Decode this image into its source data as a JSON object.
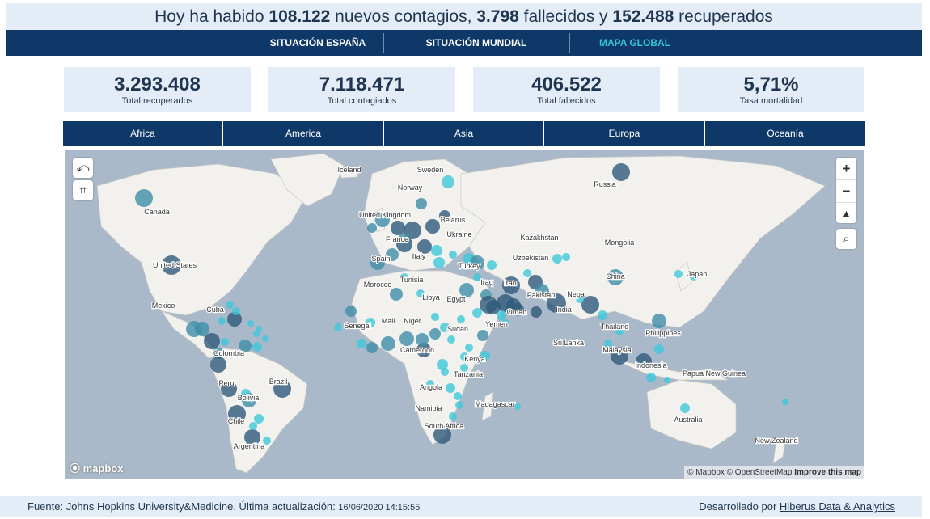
{
  "headline": {
    "p1": "Hoy ha habido ",
    "new_cases": "108.122",
    "p2": " nuevos contagios, ",
    "deaths": "3.798",
    "p3": " fallecidos y ",
    "recovered": "152.488",
    "p4": " recuperados"
  },
  "nav": {
    "tabs": [
      "SITUACIÓN ESPAÑA",
      "SITUACIÓN MUNDIAL",
      "MAPA GLOBAL"
    ],
    "active": "MAPA GLOBAL"
  },
  "kpis": [
    {
      "value": "3.293.408",
      "label": "Total recuperados"
    },
    {
      "value": "7.118.471",
      "label": "Total contagiados"
    },
    {
      "value": "406.522",
      "label": "Total fallecidos"
    },
    {
      "value": "5,71%",
      "label": "Tasa mortalidad"
    }
  ],
  "regions": [
    "Africa",
    "America",
    "Asia",
    "Europa",
    "Oceanía"
  ],
  "map": {
    "labels": [
      "Iceland",
      "Sweden",
      "Norway",
      "Russia",
      "Canada",
      "United Kingdom",
      "Belarus",
      "France",
      "Ukraine",
      "Kazakhstan",
      "Mongolia",
      "Spain",
      "Italy",
      "Turkey",
      "Uzbekistan",
      "United States",
      "Tunisia",
      "Iraq",
      "Iran",
      "China",
      "Japan",
      "Morocco",
      "Libya",
      "Egypt",
      "Pakistan",
      "Nepal",
      "Mexico",
      "Cuba",
      "Oman",
      "India",
      "Mali",
      "Niger",
      "Senegal",
      "Yemen",
      "Sudan",
      "Thailand",
      "Philippines",
      "Colombia",
      "Cameroon",
      "Sri Lanka",
      "Kenya",
      "Malaysia",
      "Indonesia",
      "Papua New Guinea",
      "Tanzania",
      "Peru",
      "Brazil",
      "Angola",
      "Madagascar",
      "Bolivia",
      "Namibia",
      "Chile",
      "South Africa",
      "Australia",
      "Argentina",
      "New Zealand"
    ],
    "bubble_colors": {
      "high": "#2f5a7a",
      "mid": "#3f8ea8",
      "low": "#3ec8d9"
    },
    "logo": "mapbox",
    "attribution": "© Mapbox © OpenStreetMap",
    "improve": "Improve this map",
    "icons": [
      "lasso-icon",
      "box-select-icon",
      "zoom-in-icon",
      "zoom-out-icon",
      "compass-icon",
      "locate-icon"
    ]
  },
  "footer": {
    "source": "Fuente:  Johns Hopkins University&Medicine. Última actualización:",
    "updated": "16/06/2020 14:15:55",
    "dev_prefix": "Desarrollado por ",
    "dev_link": "Hiberus Data & Analytics"
  }
}
